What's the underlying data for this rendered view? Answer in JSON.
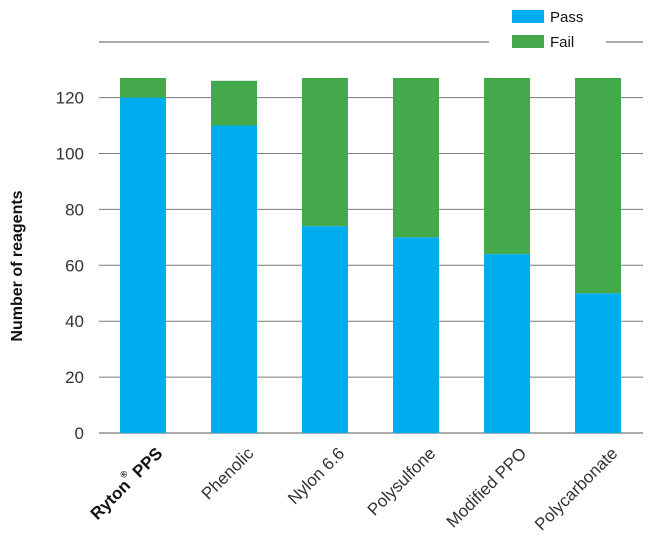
{
  "chart_data": {
    "type": "bar",
    "stacked": true,
    "categories": [
      "Ryton PPS",
      "Phenolic",
      "Nylon 6.6",
      "Polysulfone",
      "Modified PPO",
      "Polycarbonate"
    ],
    "category_marks": [
      "®",
      "",
      "",
      "",
      "",
      ""
    ],
    "series": [
      {
        "name": "Pass",
        "color": "#00aeef",
        "values": [
          120,
          110,
          74,
          70,
          64,
          50
        ]
      },
      {
        "name": "Fail",
        "color": "#43a94a",
        "values": [
          7,
          16,
          53,
          57,
          63,
          77
        ]
      }
    ],
    "ylabel": "Number of reagents",
    "xlabel": "",
    "title": "",
    "ylim": [
      0,
      127
    ],
    "yticks": [
      0,
      20,
      40,
      60,
      80,
      100,
      120
    ],
    "grid": true,
    "legend_position": "top-right"
  }
}
